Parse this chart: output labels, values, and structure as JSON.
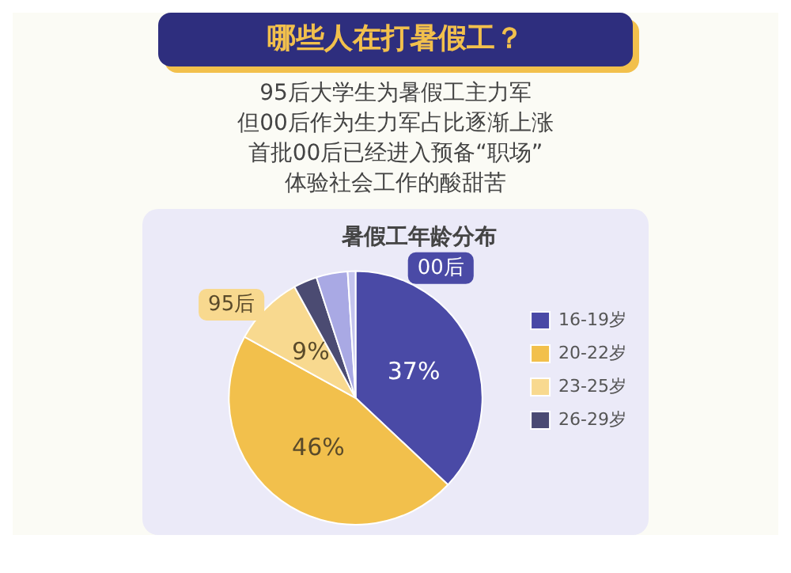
{
  "chart_data": {
    "type": "pie",
    "title": "暑假工年龄分布",
    "categories": [
      "16-19岁",
      "20-22岁",
      "23-25岁",
      "26-29岁",
      null,
      null
    ],
    "values": [
      37,
      46,
      9,
      3,
      4,
      1
    ],
    "colors": [
      "#4a4aa6",
      "#f2c04c",
      "#f8d98f",
      "#4b4b72",
      "#a9a9e4",
      "#c4c4ee"
    ],
    "value_labels": [
      "37%",
      "46%",
      "9%",
      null,
      null,
      null
    ],
    "legend": "right",
    "annotations": [
      "哪些人在打暑假工？",
      "95后大学生为暑假工主力军",
      "但00后作为生力军占比逐渐上涨",
      "首批00后已经进入预备“职场”",
      "体验社会工作的酸甜苦",
      {
        "text": "00后",
        "x": "16-19岁"
      },
      {
        "text": "95后",
        "x": "23-25岁"
      }
    ]
  }
}
